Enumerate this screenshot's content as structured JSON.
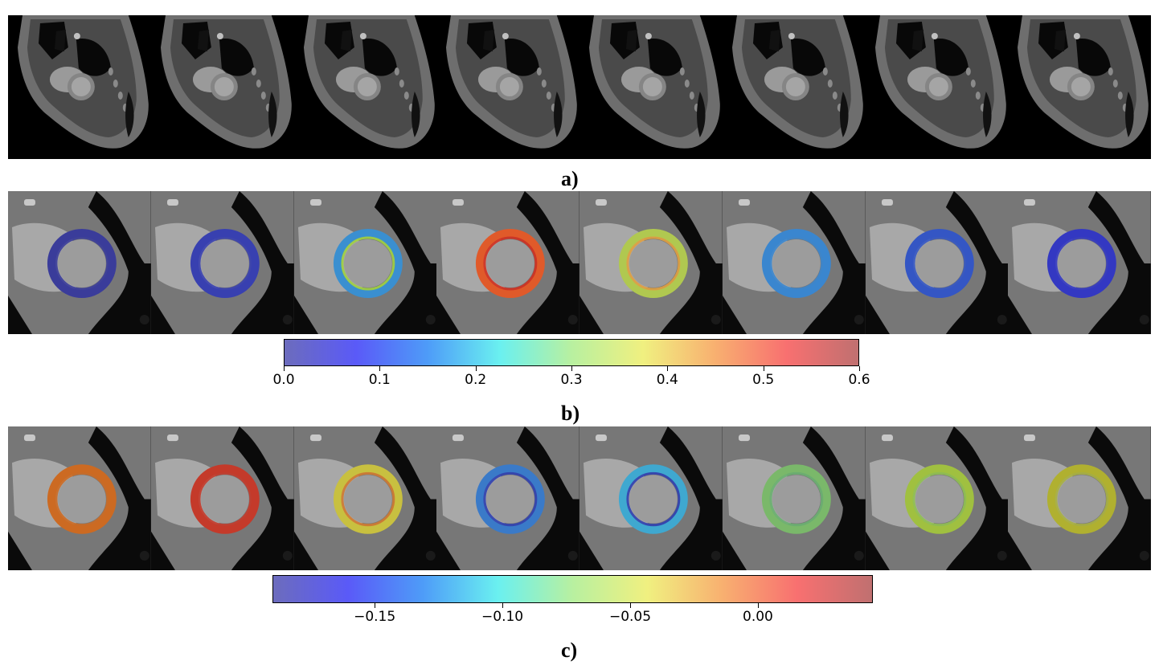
{
  "panels": [
    {
      "label": "a)"
    },
    {
      "label": "b)"
    },
    {
      "label": "c)"
    }
  ],
  "colorbar_b": {
    "ticks": [
      "0.0",
      "0.1",
      "0.2",
      "0.3",
      "0.4",
      "0.5",
      "0.6"
    ],
    "min": 0.0,
    "max": 0.6
  },
  "colorbar_c": {
    "ticks": [
      "−0.15",
      "−0.10",
      "−0.05",
      "0.00"
    ],
    "tick_values": [
      -0.15,
      -0.1,
      -0.05,
      0.0
    ],
    "min": -0.19,
    "max": 0.045
  },
  "row_b_ring_colors": [
    "#3a3c9a",
    "#3840b0",
    "#3a8fd0",
    "#e05a2a",
    "#b0c850",
    "#3a86cf",
    "#3456c4",
    "#3338c2"
  ],
  "row_b_inner_colors": [
    "#3a3c9a",
    "#3840b0",
    "#a0d040",
    "#d03020",
    "#e0a040",
    "#3a86cf",
    "#3456c4",
    "#3338c2"
  ],
  "row_c_ring_colors": [
    "#cc6a22",
    "#c43a2a",
    "#c8c040",
    "#3a7ac8",
    "#3fa8d0",
    "#7ab86a",
    "#a0c040",
    "#b0b030"
  ],
  "row_c_inner_colors": [
    "#cc6a22",
    "#c43a2a",
    "#d07a30",
    "#3040b0",
    "#3040b0",
    "#6ab070",
    "#90c050",
    "#a8b040"
  ],
  "colormap": [
    "#6c6cbd",
    "#5a5af8",
    "#4e9cf8",
    "#6af0f0",
    "#b8f0a0",
    "#f0f080",
    "#f8b070",
    "#f87070",
    "#c07070"
  ]
}
